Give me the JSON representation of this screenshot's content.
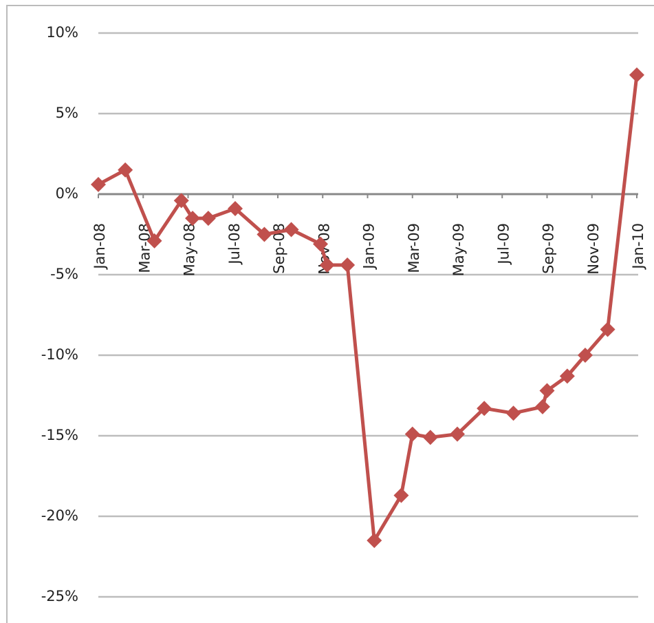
{
  "chart_data": {
    "type": "line",
    "color": "#c0504d",
    "grid": true,
    "marker": "diamond",
    "x": [
      0,
      1.2,
      2.5,
      3.7,
      4.2,
      4.9,
      6.1,
      7.4,
      8.6,
      9.9,
      10.2,
      11.1,
      12.3,
      13.5,
      14.0,
      14.8,
      16.0,
      17.2,
      18.5,
      19.8,
      20.0,
      20.9,
      21.7,
      22.7,
      24.0
    ],
    "values": [
      0.6,
      1.5,
      -2.9,
      -0.4,
      -1.5,
      -1.5,
      -0.9,
      -2.5,
      -2.2,
      -3.1,
      -4.4,
      -4.4,
      -21.5,
      -18.7,
      -14.9,
      -15.1,
      -14.9,
      -13.3,
      -13.6,
      -13.2,
      -12.2,
      -11.3,
      -10.0,
      -8.4,
      7.4
    ],
    "xlim": [
      0,
      24
    ],
    "xticks": [
      {
        "value": 0,
        "label": "Jan-08"
      },
      {
        "value": 2,
        "label": "Mar-08"
      },
      {
        "value": 4,
        "label": "May-08"
      },
      {
        "value": 6,
        "label": "Jul-08"
      },
      {
        "value": 8,
        "label": "Sep-08"
      },
      {
        "value": 10,
        "label": "Nov-08"
      },
      {
        "value": 12,
        "label": "Jan-09"
      },
      {
        "value": 14,
        "label": "Mar-09"
      },
      {
        "value": 16,
        "label": "May-09"
      },
      {
        "value": 18,
        "label": "Jul-09"
      },
      {
        "value": 20,
        "label": "Sep-09"
      },
      {
        "value": 22,
        "label": "Nov-09"
      },
      {
        "value": 24,
        "label": "Jan-10"
      }
    ],
    "ylim": [
      -25,
      10
    ],
    "yticks": [
      {
        "value": 10,
        "label": "10%"
      },
      {
        "value": 5,
        "label": "5%"
      },
      {
        "value": 0,
        "label": "0%"
      },
      {
        "value": -5,
        "label": "-5%"
      },
      {
        "value": -10,
        "label": "-10%"
      },
      {
        "value": -15,
        "label": "-15%"
      },
      {
        "value": -20,
        "label": "-20%"
      },
      {
        "value": -25,
        "label": "-25%"
      }
    ]
  }
}
